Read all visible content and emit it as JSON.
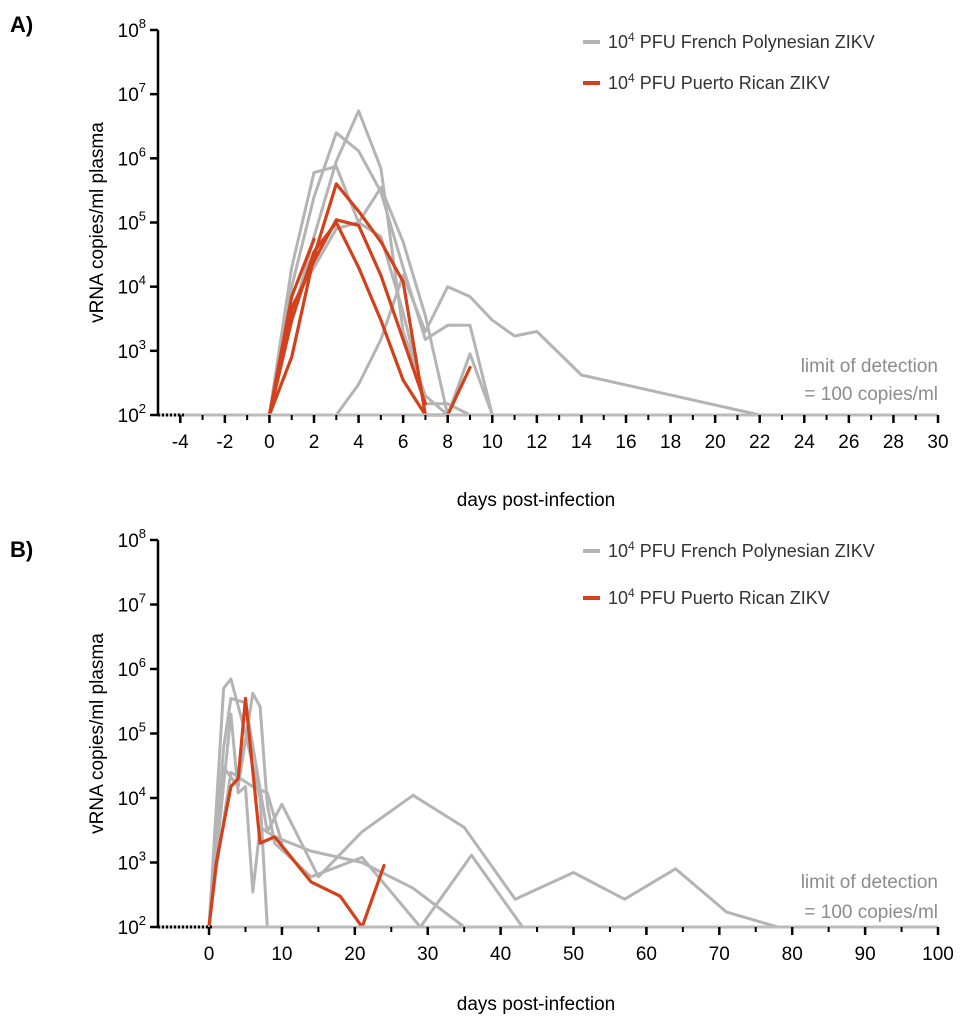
{
  "colors": {
    "french": "#b4b4b4",
    "puerto": "#d4401a",
    "axis": "#000000",
    "lod_text": "#8c8c8c"
  },
  "chart_data": [
    {
      "type": "line",
      "panel_label": "A)",
      "xlabel": "days post-infection",
      "ylabel": "vRNA copies/ml plasma",
      "yscale": "log",
      "xlim": [
        -5,
        30
      ],
      "ylim": [
        100,
        100000000
      ],
      "x_ticks": [
        -4,
        -2,
        0,
        2,
        4,
        6,
        8,
        10,
        12,
        14,
        16,
        18,
        20,
        22,
        24,
        26,
        28,
        30
      ],
      "y_ticks": [
        {
          "base": "10",
          "exp": "2",
          "value": 100
        },
        {
          "base": "10",
          "exp": "3",
          "value": 1000
        },
        {
          "base": "10",
          "exp": "4",
          "value": 10000
        },
        {
          "base": "10",
          "exp": "5",
          "value": 100000
        },
        {
          "base": "10",
          "exp": "6",
          "value": 1000000
        },
        {
          "base": "10",
          "exp": "7",
          "value": 10000000
        },
        {
          "base": "10",
          "exp": "8",
          "value": 100000000
        }
      ],
      "legend": [
        {
          "prefix": "10",
          "sup": "4",
          "text": " PFU French Polynesian ZIKV",
          "color": "#b4b4b4"
        },
        {
          "prefix": "10",
          "sup": "4",
          "text": " PFU Puerto Rican ZIKV",
          "color": "#d4401a"
        }
      ],
      "annotation": [
        "limit of detection",
        "= 100 copies/ml"
      ],
      "series": [
        {
          "group": "french",
          "points": [
            [
              0,
              100
            ],
            [
              1,
              20000
            ],
            [
              2,
              600000
            ],
            [
              3,
              750000
            ],
            [
              4,
              100000
            ],
            [
              5,
              60000
            ],
            [
              6,
              4000
            ],
            [
              7,
              150
            ],
            [
              8,
              150
            ],
            [
              9,
              100
            ]
          ]
        },
        {
          "group": "french",
          "points": [
            [
              0,
              100
            ],
            [
              1,
              10000
            ],
            [
              2,
              250000
            ],
            [
              3,
              2500000
            ],
            [
              4,
              1300000
            ],
            [
              5,
              300000
            ],
            [
              6,
              20000
            ],
            [
              7,
              1500
            ],
            [
              8,
              2500
            ],
            [
              9,
              2500
            ],
            [
              10,
              100
            ]
          ]
        },
        {
          "group": "french",
          "points": [
            [
              0,
              100
            ],
            [
              1,
              3000
            ],
            [
              2,
              60000
            ],
            [
              3,
              900000
            ],
            [
              4,
              5500000
            ],
            [
              5,
              700000
            ],
            [
              6,
              2000
            ],
            [
              7,
              200
            ],
            [
              8,
              100
            ],
            [
              9,
              900
            ],
            [
              10,
              100
            ]
          ]
        },
        {
          "group": "french",
          "points": [
            [
              3,
              100
            ],
            [
              4,
              300
            ],
            [
              5,
              1500
            ],
            [
              6,
              15000
            ],
            [
              7,
              2000
            ],
            [
              8,
              10000
            ],
            [
              9,
              7000
            ],
            [
              10,
              3000
            ],
            [
              11,
              1700
            ],
            [
              12,
              2000
            ],
            [
              14,
              420
            ],
            [
              22,
              100
            ]
          ]
        },
        {
          "group": "french",
          "points": [
            [
              0,
              100
            ],
            [
              1,
              5000
            ],
            [
              2,
              20000
            ],
            [
              3,
              80000
            ],
            [
              4,
              100000
            ],
            [
              5,
              350000
            ],
            [
              6,
              50000
            ],
            [
              7,
              3500
            ],
            [
              8,
              100
            ],
            [
              10,
              100
            ]
          ]
        },
        {
          "group": "puerto",
          "points": [
            [
              0,
              100
            ],
            [
              1,
              7000
            ],
            [
              2,
              55000
            ]
          ]
        },
        {
          "group": "puerto",
          "points": [
            [
              0,
              100
            ],
            [
              1,
              800
            ],
            [
              2,
              30000
            ],
            [
              3,
              400000
            ],
            [
              4,
              150000
            ],
            [
              5,
              50000
            ],
            [
              6,
              12000
            ],
            [
              7,
              100
            ],
            [
              8,
              100
            ],
            [
              9,
              550
            ]
          ]
        },
        {
          "group": "puerto",
          "points": [
            [
              0,
              100
            ],
            [
              1,
              4500
            ],
            [
              2,
              25000
            ],
            [
              3,
              110000
            ],
            [
              4,
              90000
            ],
            [
              5,
              15000
            ],
            [
              6,
              1500
            ],
            [
              7,
              150
            ]
          ]
        },
        {
          "group": "puerto",
          "points": [
            [
              0,
              100
            ],
            [
              1,
              3000
            ],
            [
              2,
              35000
            ],
            [
              3,
              100000
            ],
            [
              4,
              20000
            ],
            [
              5,
              3000
            ],
            [
              6,
              350
            ],
            [
              7,
              100
            ]
          ]
        }
      ]
    },
    {
      "type": "line",
      "panel_label": "B)",
      "xlabel": "days post-infection",
      "ylabel": "vRNA copies/ml plasma",
      "yscale": "log",
      "xlim": [
        -7,
        100
      ],
      "ylim": [
        100,
        100000000
      ],
      "x_ticks": [
        0,
        10,
        20,
        30,
        40,
        50,
        60,
        70,
        80,
        90,
        100
      ],
      "y_ticks": [
        {
          "base": "10",
          "exp": "2",
          "value": 100
        },
        {
          "base": "10",
          "exp": "3",
          "value": 1000
        },
        {
          "base": "10",
          "exp": "4",
          "value": 10000
        },
        {
          "base": "10",
          "exp": "5",
          "value": 100000
        },
        {
          "base": "10",
          "exp": "6",
          "value": 1000000
        },
        {
          "base": "10",
          "exp": "7",
          "value": 10000000
        },
        {
          "base": "10",
          "exp": "8",
          "value": 100000000
        }
      ],
      "legend": [
        {
          "prefix": "10",
          "sup": "4",
          "text": " PFU French Polynesian ZIKV",
          "color": "#b4b4b4"
        },
        {
          "prefix": "10",
          "sup": "4",
          "text": " PFU Puerto Rican ZIKV",
          "color": "#d4401a"
        }
      ],
      "annotation": [
        "limit of detection",
        "= 100 copies/ml"
      ],
      "series": [
        {
          "group": "french",
          "points": [
            [
              0,
              100
            ],
            [
              2,
              500000
            ],
            [
              3,
              700000
            ],
            [
              5,
              100000
            ],
            [
              7,
              10000
            ],
            [
              8,
              100
            ]
          ]
        },
        {
          "group": "french",
          "points": [
            [
              0,
              100
            ],
            [
              2,
              30000
            ],
            [
              4,
              15000
            ],
            [
              6,
              420000
            ],
            [
              7,
              260000
            ],
            [
              8,
              8000
            ],
            [
              9,
              2000
            ],
            [
              14,
              600
            ],
            [
              21,
              1200
            ],
            [
              29,
              100
            ],
            [
              36,
              1300
            ],
            [
              43,
              100
            ]
          ]
        },
        {
          "group": "french",
          "points": [
            [
              0,
              100
            ],
            [
              3,
              200000
            ],
            [
              4,
              12000
            ],
            [
              5,
              15000
            ],
            [
              6,
              350
            ],
            [
              7,
              3500
            ],
            [
              9,
              2500
            ],
            [
              14,
              1500
            ],
            [
              21,
              1000
            ],
            [
              28,
              400
            ],
            [
              35,
              100
            ]
          ]
        },
        {
          "group": "french",
          "points": [
            [
              0,
              100
            ],
            [
              2,
              60000
            ],
            [
              3,
              350000
            ],
            [
              5,
              300000
            ],
            [
              8,
              3000
            ],
            [
              10,
              8000
            ],
            [
              15,
              600
            ],
            [
              21,
              3000
            ],
            [
              28,
              11000
            ],
            [
              35,
              3500
            ],
            [
              42,
              270
            ],
            [
              50,
              700
            ],
            [
              57,
              270
            ],
            [
              64,
              800
            ],
            [
              71,
              170
            ],
            [
              78,
              100
            ]
          ]
        },
        {
          "group": "french",
          "points": [
            [
              0,
              100
            ],
            [
              1,
              800
            ],
            [
              3,
              25000
            ],
            [
              6,
              15000
            ],
            [
              8,
              12000
            ],
            [
              10,
              2000
            ]
          ]
        },
        {
          "group": "puerto",
          "points": [
            [
              0,
              100
            ],
            [
              1,
              1000
            ],
            [
              3,
              15000
            ],
            [
              4,
              20000
            ],
            [
              5,
              350000
            ],
            [
              7,
              2000
            ],
            [
              9,
              2500
            ],
            [
              14,
              500
            ],
            [
              18,
              300
            ],
            [
              21,
              100
            ],
            [
              24,
              900
            ]
          ]
        }
      ]
    }
  ]
}
